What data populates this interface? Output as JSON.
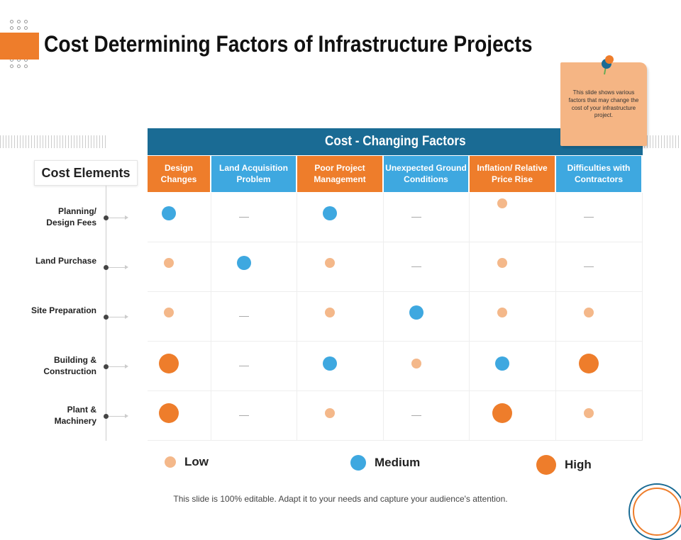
{
  "title": "Cost Determining Factors of Infrastructure Projects",
  "note": "This slide shows various factors that may change the cost of your infrastructure project.",
  "banner": "Cost - Changing Factors",
  "row_header": "Cost Elements",
  "colors": {
    "low": "#f4b88a",
    "medium": "#3ea8e0",
    "high": "#ee7d2b",
    "banner": "#1a6b94"
  },
  "columns": [
    {
      "label": "Design Changes",
      "color": "#ee7d2b"
    },
    {
      "label": "Land Acquisition Problem",
      "color": "#3ea8e0"
    },
    {
      "label": "Poor Project Management",
      "color": "#ee7d2b"
    },
    {
      "label": "Unexpected Ground Conditions",
      "color": "#3ea8e0"
    },
    {
      "label": "Inflation/ Relative Price Rise",
      "color": "#ee7d2b"
    },
    {
      "label": "Difficulties with Contractors",
      "color": "#3ea8e0"
    }
  ],
  "rows": [
    {
      "label": "Planning/ Design Fees",
      "values": [
        "medium",
        "none",
        "medium",
        "none",
        "low",
        "none"
      ]
    },
    {
      "label": "Land Purchase",
      "values": [
        "low",
        "medium",
        "low",
        "none",
        "low",
        "none"
      ]
    },
    {
      "label": "Site Preparation",
      "values": [
        "low",
        "none",
        "low",
        "medium",
        "low",
        "low"
      ]
    },
    {
      "label": "Building & Construction",
      "values": [
        "high",
        "none",
        "medium",
        "low",
        "medium",
        "high"
      ]
    },
    {
      "label": "Plant & Machinery",
      "values": [
        "high",
        "none",
        "low",
        "none",
        "high",
        "low"
      ]
    }
  ],
  "legend": {
    "low": "Low",
    "medium": "Medium",
    "high": "High"
  },
  "footer": "This slide is 100% editable. Adapt it to your needs and capture your audience's attention."
}
